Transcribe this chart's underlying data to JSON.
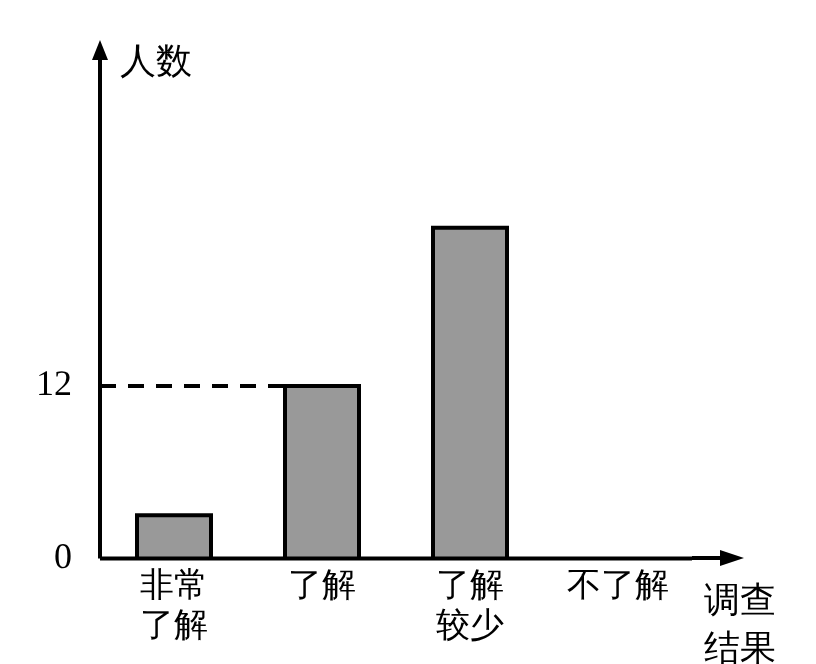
{
  "chart_data": {
    "type": "bar",
    "xlabel": "调查结果",
    "ylabel": "人数",
    "categories": [
      "非常了解",
      "了解",
      "了解较少",
      "不了解"
    ],
    "values": [
      3,
      12,
      23,
      null
    ],
    "color": "#999999",
    "ylim": [
      0,
      33
    ],
    "yticks": [
      0,
      12
    ],
    "grid": false,
    "ref_lines": [
      {
        "axis": "y",
        "value": 12,
        "line_style": "dashed",
        "color": "#000000"
      }
    ]
  }
}
